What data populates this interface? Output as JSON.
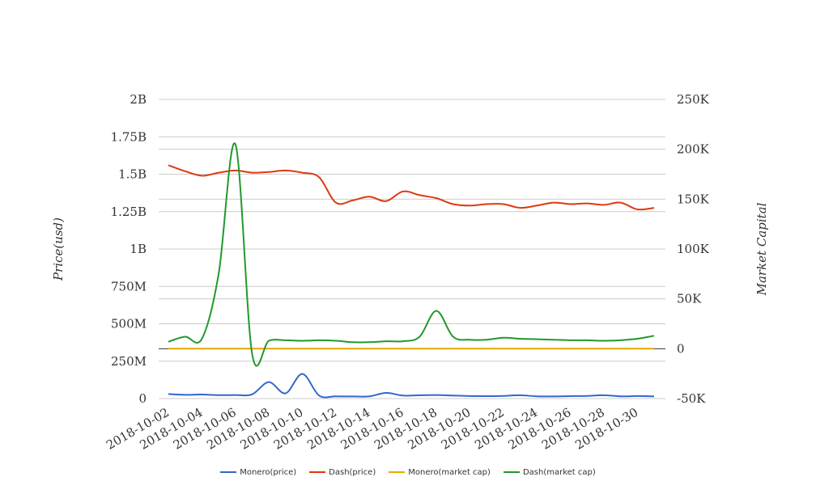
{
  "chart_data": {
    "type": "line",
    "x": [
      "2018-10-02",
      "2018-10-03",
      "2018-10-04",
      "2018-10-05",
      "2018-10-06",
      "2018-10-07",
      "2018-10-08",
      "2018-10-09",
      "2018-10-10",
      "2018-10-11",
      "2018-10-12",
      "2018-10-13",
      "2018-10-14",
      "2018-10-15",
      "2018-10-16",
      "2018-10-17",
      "2018-10-18",
      "2018-10-19",
      "2018-10-20",
      "2018-10-21",
      "2018-10-22",
      "2018-10-23",
      "2018-10-24",
      "2018-10-25",
      "2018-10-26",
      "2018-10-27",
      "2018-10-28",
      "2018-10-29",
      "2018-10-30",
      "2018-10-31"
    ],
    "xticks": [
      "2018-10-02",
      "2018-10-04",
      "2018-10-06",
      "2018-10-08",
      "2018-10-10",
      "2018-10-12",
      "2018-10-14",
      "2018-10-16",
      "2018-10-18",
      "2018-10-20",
      "2018-10-22",
      "2018-10-24",
      "2018-10-26",
      "2018-10-28",
      "2018-10-30"
    ],
    "y_left": {
      "label": "Price(usd)",
      "ticks": [
        "0",
        "250M",
        "500M",
        "750M",
        "1B",
        "1.25B",
        "1.5B",
        "1.75B",
        "2B"
      ],
      "min": 0,
      "max": 2000000000
    },
    "y_right": {
      "label": "Market Capital",
      "ticks": [
        "-50K",
        "0",
        "50K",
        "100K",
        "150K",
        "200K",
        "250K"
      ],
      "min": -50000,
      "max": 250000
    },
    "grid": true,
    "legend_position": "bottom",
    "series": [
      {
        "name": "Monero(price)",
        "axis": "left",
        "color": "#3366cc",
        "values": [
          30000000,
          25000000,
          27000000,
          23000000,
          24000000,
          28000000,
          110000000,
          35000000,
          165000000,
          20000000,
          15000000,
          14000000,
          15000000,
          38000000,
          20000000,
          22000000,
          24000000,
          20000000,
          17000000,
          16000000,
          18000000,
          22000000,
          15000000,
          14000000,
          16000000,
          18000000,
          22000000,
          15000000,
          17000000,
          15000000
        ]
      },
      {
        "name": "Dash(price)",
        "axis": "left",
        "color": "#dc3912",
        "values": [
          1560000000,
          1520000000,
          1490000000,
          1510000000,
          1525000000,
          1510000000,
          1515000000,
          1525000000,
          1510000000,
          1480000000,
          1310000000,
          1325000000,
          1350000000,
          1320000000,
          1385000000,
          1360000000,
          1340000000,
          1300000000,
          1290000000,
          1300000000,
          1300000000,
          1275000000,
          1290000000,
          1310000000,
          1300000000,
          1305000000,
          1295000000,
          1310000000,
          1265000000,
          1275000000
        ]
      },
      {
        "name": "Monero(market cap)",
        "axis": "right",
        "color": "#e6a800",
        "values": [
          0,
          0,
          0,
          0,
          0,
          0,
          0,
          0,
          0,
          0,
          0,
          0,
          0,
          0,
          0,
          0,
          0,
          0,
          0,
          0,
          0,
          0,
          0,
          0,
          0,
          0,
          0,
          0,
          0,
          0
        ]
      },
      {
        "name": "Dash(market cap)",
        "axis": "right",
        "color": "#22992a",
        "values": [
          7000,
          12000,
          10000,
          75000,
          205000,
          -5000,
          8000,
          8500,
          8000,
          8500,
          8000,
          6500,
          6500,
          7500,
          7500,
          12000,
          38000,
          12000,
          9000,
          9000,
          11000,
          10000,
          9500,
          9000,
          8500,
          8500,
          8000,
          8500,
          10000,
          13000
        ]
      }
    ]
  }
}
